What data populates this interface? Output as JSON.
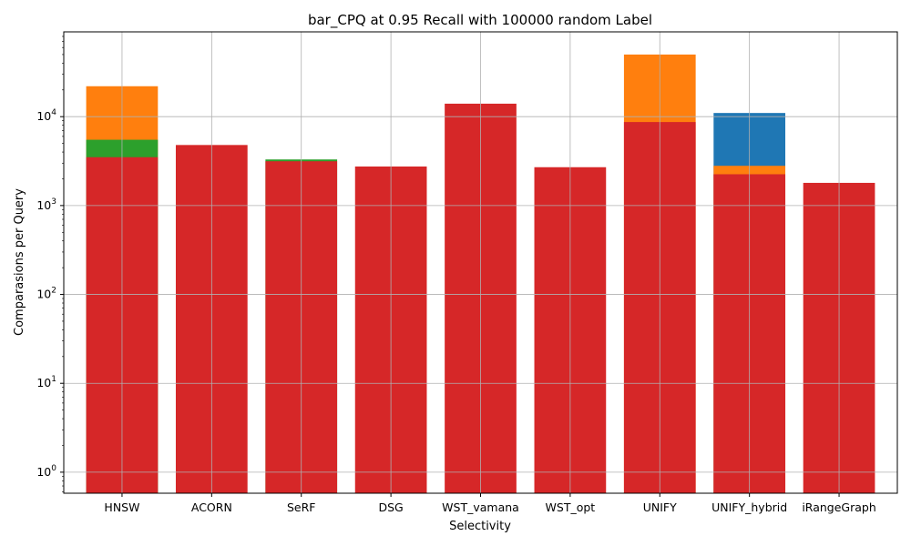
{
  "chart_data": {
    "type": "bar",
    "title": "bar_CPQ at 0.95 Recall with 100000 random Label",
    "xlabel": "Selectivity",
    "ylabel": "Comparasions per Query",
    "yscale": "log",
    "ylim": [
      0.58,
      90000
    ],
    "grid": true,
    "categories": [
      "HNSW",
      "ACORN",
      "SeRF",
      "DSG",
      "WST_vamana",
      "WST_opt",
      "UNIFY",
      "UNIFY_hybrid",
      "iRangeGraph"
    ],
    "yticks": [
      {
        "value": 1,
        "mant": "10",
        "exp": "0"
      },
      {
        "value": 10,
        "mant": "10",
        "exp": "1"
      },
      {
        "value": 100,
        "mant": "10",
        "exp": "2"
      },
      {
        "value": 1000,
        "mant": "10",
        "exp": "3"
      },
      {
        "value": 10000,
        "mant": "10",
        "exp": "4"
      }
    ],
    "series": [
      {
        "color": "#1f77b4",
        "values": [
          null,
          null,
          null,
          null,
          null,
          null,
          null,
          11000,
          null
        ]
      },
      {
        "color": "#ff7f0e",
        "values": [
          22000,
          null,
          null,
          null,
          null,
          null,
          50000,
          2800,
          null
        ]
      },
      {
        "color": "#2ca02c",
        "values": [
          5500,
          null,
          3300,
          null,
          null,
          null,
          null,
          null,
          null
        ]
      },
      {
        "color": "#d62728",
        "values": [
          3500,
          4800,
          3150,
          2750,
          14000,
          2700,
          8700,
          2250,
          1800
        ]
      }
    ]
  }
}
